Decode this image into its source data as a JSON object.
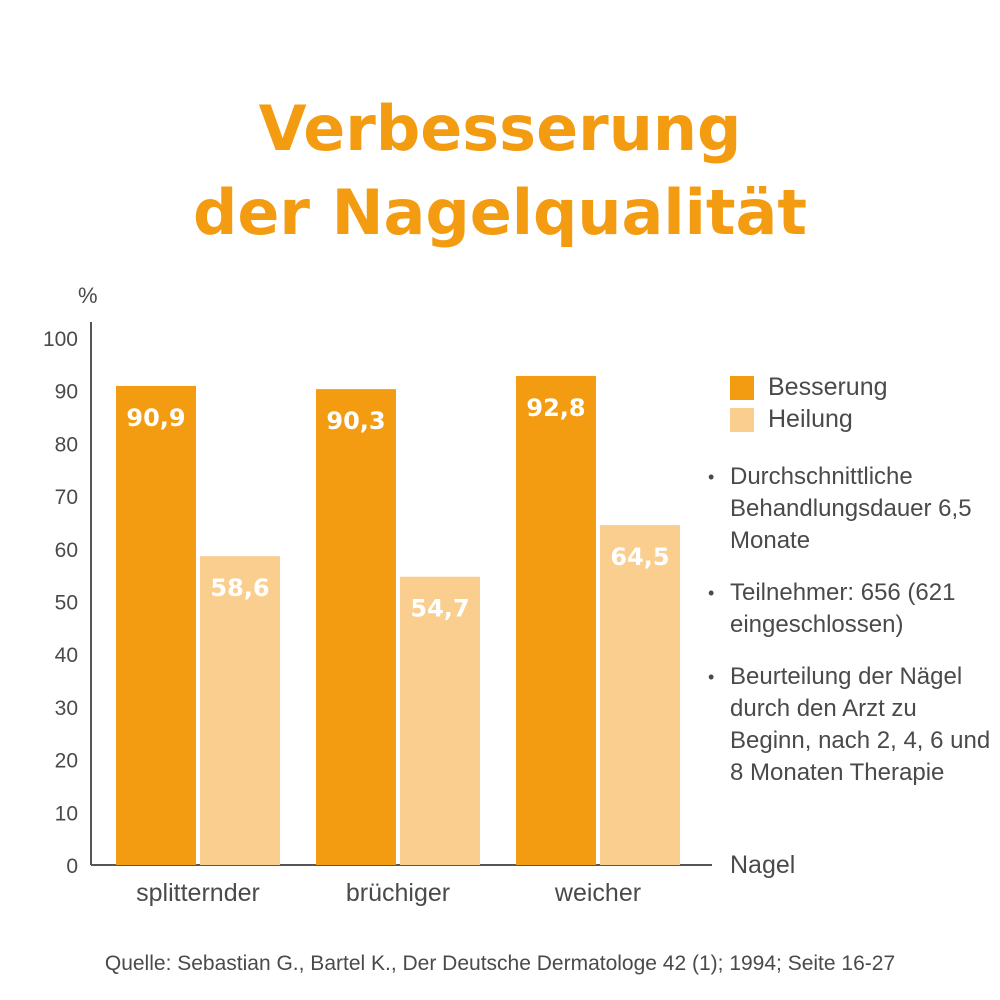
{
  "title": {
    "line1": "Verbesserung",
    "line2": "der Nagelqualität"
  },
  "legend": {
    "items": [
      "Besserung",
      "Heilung"
    ]
  },
  "notes": [
    "Durchschnittliche Behandlungsdauer 6,5 Monate",
    "Teilnehmer: 656 (621 eingeschlossen)",
    "Beurteilung der Nägel durch den Arzt zu Beginn, nach 2, 4, 6 und 8 Monaten Therapie"
  ],
  "source": "Quelle: Sebastian G., Bartel K., Der Deutsche Dermatologe 42 (1); 1994; Seite 16-27",
  "chart_data": {
    "type": "bar",
    "title": "Verbesserung der Nagelqualität",
    "ylabel": "%",
    "xlabel": "Nagel",
    "ylim": [
      0,
      100
    ],
    "yticks": [
      0,
      10,
      20,
      30,
      40,
      50,
      60,
      70,
      80,
      90,
      100
    ],
    "categories": [
      "splitternder",
      "brüchiger",
      "weicher"
    ],
    "series": [
      {
        "name": "Besserung",
        "values": [
          90.9,
          90.3,
          92.8
        ],
        "labels": [
          "90,9",
          "90,3",
          "92,8"
        ],
        "color": "#f39c12"
      },
      {
        "name": "Heilung",
        "values": [
          58.6,
          54.7,
          64.5
        ],
        "labels": [
          "58,6",
          "54,7",
          "64,5"
        ],
        "color": "#f9ce8e"
      }
    ],
    "grid": false,
    "legend_position": "right"
  }
}
